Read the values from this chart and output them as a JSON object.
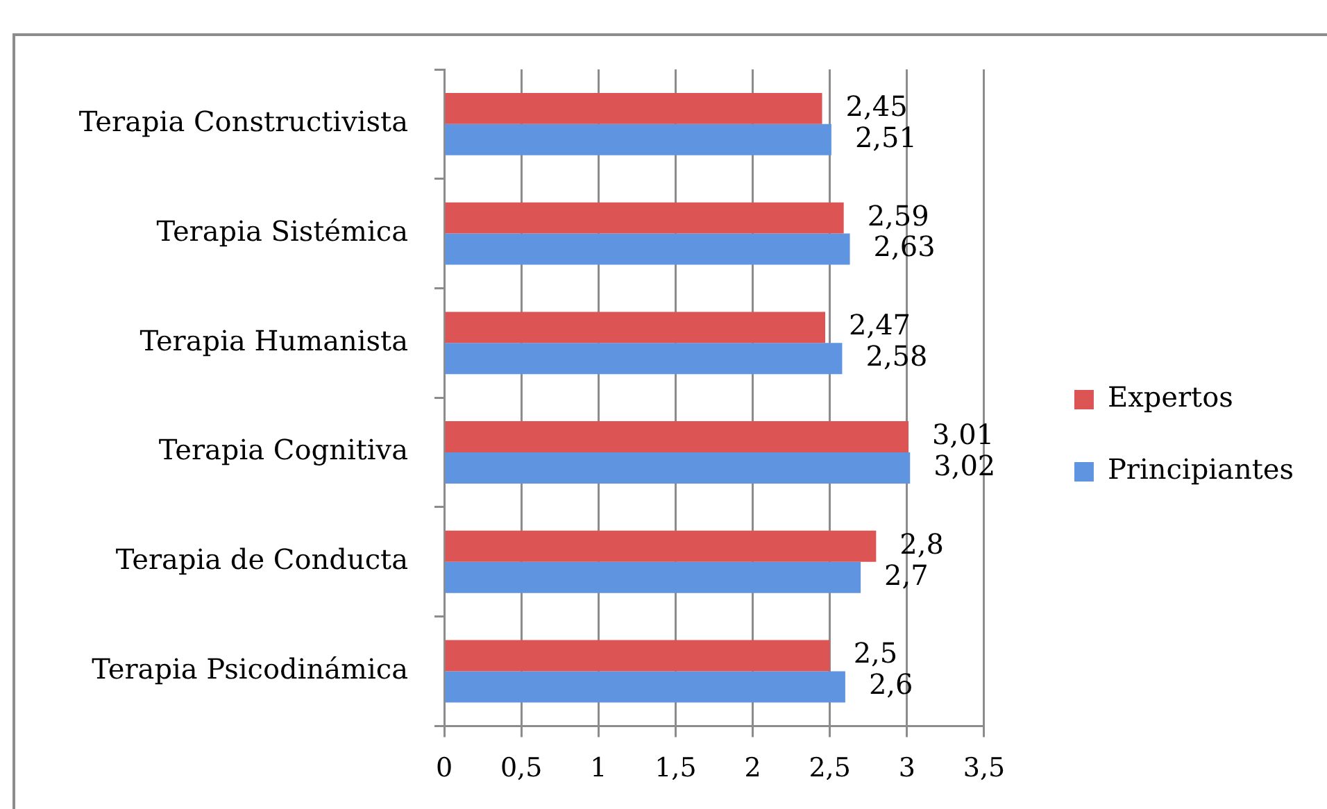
{
  "chart_data": {
    "type": "bar",
    "orientation": "horizontal",
    "categories": [
      "Terapia Constructivista",
      "Terapia Sistémica",
      "Terapia Humanista",
      "Terapia Cognitiva",
      "Terapia de Conducta",
      "Terapia Psicodinámica"
    ],
    "series": [
      {
        "name": "Expertos",
        "color": "#dc5454",
        "values": [
          2.45,
          2.59,
          2.47,
          3.01,
          2.8,
          2.5
        ],
        "value_labels": [
          "2,45",
          "2,59",
          "2,47",
          "3,01",
          "2,8",
          "2,5"
        ]
      },
      {
        "name": "Principiantes",
        "color": "#5f95e0",
        "values": [
          2.51,
          2.63,
          2.58,
          3.02,
          2.7,
          2.6
        ],
        "value_labels": [
          "2,51",
          "2,63",
          "2,58",
          "3,02",
          "2,7",
          "2,6"
        ]
      }
    ],
    "xlim": [
      0,
      3.5
    ],
    "xticks": [
      0,
      {
        "value": 0.5,
        "label": "0,5"
      },
      1,
      {
        "value": 1.5,
        "label": "1,5"
      },
      2,
      {
        "value": 2.5,
        "label": "2,5"
      },
      3,
      {
        "value": 3.5,
        "label": "3,5"
      }
    ],
    "grid": "x",
    "legend": "right"
  }
}
